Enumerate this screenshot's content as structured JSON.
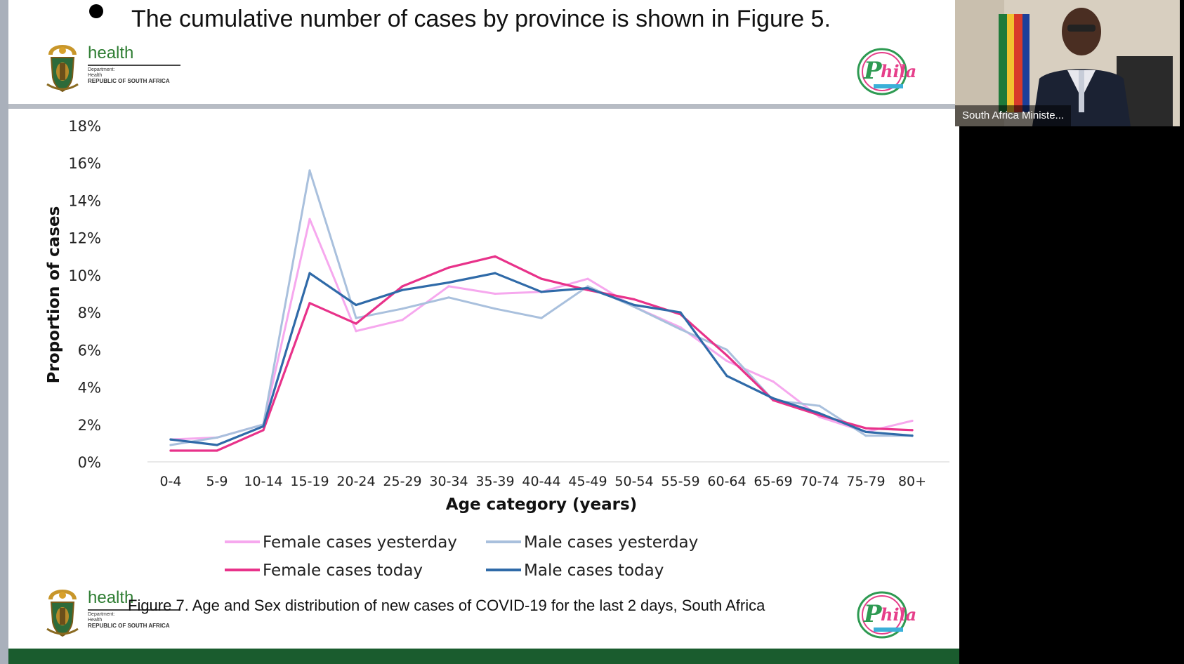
{
  "slide": {
    "bullet_text": "The cumulative number of cases by province is shown in Figure 5.",
    "caption": "Figure 7. Age and Sex distribution of new cases of COVID-19 for the last 2 days, South Africa"
  },
  "logo": {
    "health": "health",
    "dept_line1": "Department:",
    "dept_line2": "Health",
    "dept_line3": "REPUBLIC OF SOUTH AFRICA"
  },
  "video": {
    "participant_name": "South Africa Ministe..."
  },
  "colors": {
    "female_yesterday": "#f6a8ee",
    "male_yesterday": "#a9c0dd",
    "female_today": "#e8328a",
    "male_today": "#2f6aa8",
    "footer_green": "#1a5c2e"
  },
  "chart_data": {
    "type": "line",
    "title": "",
    "xlabel": "Age category (years)",
    "ylabel": "Proportion of cases",
    "ylim": [
      0,
      18
    ],
    "yticks": [
      "0%",
      "2%",
      "4%",
      "6%",
      "8%",
      "10%",
      "12%",
      "14%",
      "16%",
      "18%"
    ],
    "categories": [
      "0-4",
      "5-9",
      "10-14",
      "15-19",
      "20-24",
      "25-29",
      "30-34",
      "35-39",
      "40-44",
      "45-49",
      "50-54",
      "55-59",
      "60-64",
      "65-69",
      "70-74",
      "75-79",
      "80+"
    ],
    "series": [
      {
        "name": "Female cases yesterday",
        "values": [
          1.2,
          1.3,
          2.0,
          13.0,
          7.0,
          7.6,
          9.4,
          9.0,
          9.1,
          9.8,
          8.3,
          7.2,
          5.4,
          4.3,
          2.4,
          1.6,
          2.2
        ]
      },
      {
        "name": "Male cases yesterday",
        "values": [
          0.9,
          1.3,
          2.0,
          15.6,
          7.7,
          8.2,
          8.8,
          8.2,
          7.7,
          9.4,
          8.3,
          7.1,
          6.0,
          3.3,
          3.0,
          1.4,
          1.4
        ]
      },
      {
        "name": "Female cases today",
        "values": [
          0.6,
          0.6,
          1.7,
          8.5,
          7.4,
          9.4,
          10.4,
          11.0,
          9.8,
          9.2,
          8.7,
          7.9,
          5.7,
          3.3,
          2.5,
          1.8,
          1.7
        ]
      },
      {
        "name": "Male cases today",
        "values": [
          1.2,
          0.9,
          1.9,
          10.1,
          8.4,
          9.2,
          9.6,
          10.1,
          9.1,
          9.3,
          8.4,
          8.0,
          4.6,
          3.4,
          2.6,
          1.6,
          1.4
        ]
      }
    ],
    "legend_position": "bottom",
    "grid": false
  }
}
